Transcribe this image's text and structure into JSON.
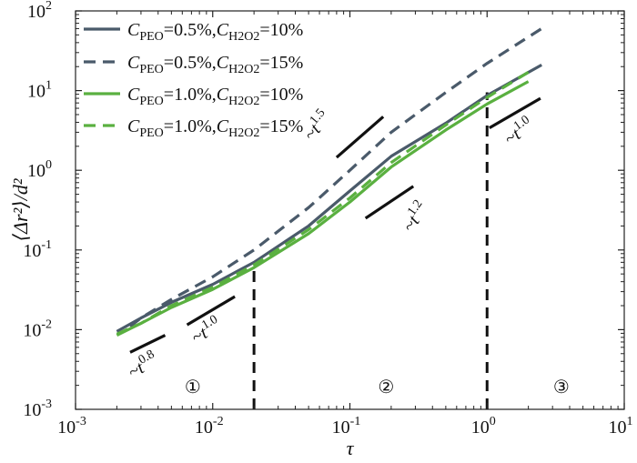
{
  "chart_data": {
    "type": "line",
    "xlabel": "τ",
    "ylabel": "⟨Δr²⟩/d²",
    "x_scale": "log",
    "y_scale": "log",
    "xlim": [
      0.001,
      10
    ],
    "ylim": [
      0.001,
      100
    ],
    "grid": false,
    "legend_position": "top-left",
    "x_ticks": [
      {
        "base": "10",
        "exp": "-3",
        "value": 0.001
      },
      {
        "base": "10",
        "exp": "-2",
        "value": 0.01
      },
      {
        "base": "10",
        "exp": "-1",
        "value": 0.1
      },
      {
        "base": "10",
        "exp": "0",
        "value": 1
      },
      {
        "base": "10",
        "exp": "1",
        "value": 10
      }
    ],
    "y_ticks": [
      {
        "base": "10",
        "exp": "-3",
        "value": 0.001
      },
      {
        "base": "10",
        "exp": "-2",
        "value": 0.01
      },
      {
        "base": "10",
        "exp": "-1",
        "value": 0.1
      },
      {
        "base": "10",
        "exp": "0",
        "value": 1
      },
      {
        "base": "10",
        "exp": "1",
        "value": 10
      },
      {
        "base": "10",
        "exp": "2",
        "value": 100
      }
    ],
    "series": [
      {
        "name": "CPEO=0.5%,CH2O2=10%",
        "label_parts": {
          "a": "C",
          "a_sub": "PEO",
          "b": "=0.5%,",
          "c": "C",
          "c_sub": "H2O2",
          "d": "=10%"
        },
        "color": "#4a5a6a",
        "dash": "solid",
        "x": [
          0.002,
          0.003,
          0.005,
          0.01,
          0.02,
          0.05,
          0.1,
          0.2,
          0.5,
          1.0,
          2.5
        ],
        "y": [
          0.0095,
          0.014,
          0.022,
          0.037,
          0.07,
          0.2,
          0.55,
          1.5,
          3.9,
          8.7,
          21
        ]
      },
      {
        "name": "CPEO=0.5%,CH2O2=15%",
        "label_parts": {
          "a": "C",
          "a_sub": "PEO",
          "b": "=0.5%,",
          "c": "C",
          "c_sub": "H2O2",
          "d": "=15%"
        },
        "color": "#4a5a6a",
        "dash": "dashed",
        "x": [
          0.0025,
          0.003,
          0.005,
          0.01,
          0.02,
          0.05,
          0.1,
          0.2,
          0.5,
          1.0,
          2.5
        ],
        "y": [
          0.011,
          0.014,
          0.024,
          0.046,
          0.1,
          0.34,
          1.0,
          3.0,
          9.5,
          22,
          60
        ]
      },
      {
        "name": "CPEO=1.0%,CH2O2=10%",
        "label_parts": {
          "a": "C",
          "a_sub": "PEO",
          "b": "=1.0%,",
          "c": "C",
          "c_sub": "H2O2",
          "d": "=10%"
        },
        "color": "#5ab040",
        "dash": "solid",
        "x": [
          0.002,
          0.003,
          0.005,
          0.01,
          0.02,
          0.05,
          0.1,
          0.2,
          0.5,
          1.0,
          2.0
        ],
        "y": [
          0.0085,
          0.012,
          0.019,
          0.032,
          0.06,
          0.16,
          0.4,
          1.1,
          3.2,
          6.8,
          13
        ]
      },
      {
        "name": "CPEO=1.0%,CH2O2=15%",
        "label_parts": {
          "a": "C",
          "a_sub": "PEO",
          "b": "=1.0%,",
          "c": "C",
          "c_sub": "H2O2",
          "d": "=15%"
        },
        "color": "#5ab040",
        "dash": "dashed",
        "x": [
          0.002,
          0.003,
          0.005,
          0.01,
          0.02,
          0.05,
          0.1,
          0.2,
          0.5,
          1.0,
          2.0
        ],
        "y": [
          0.0088,
          0.012,
          0.02,
          0.034,
          0.065,
          0.18,
          0.45,
          1.25,
          3.7,
          8.2,
          17
        ]
      }
    ],
    "vertical_lines": [
      0.02,
      1.0
    ],
    "slope_annotations": [
      {
        "base": "~t",
        "exp": "0.8",
        "x1": 0.0025,
        "x2": 0.0045,
        "y1": 0.0052,
        "y2": 0.0085
      },
      {
        "base": "~t",
        "exp": "1.0",
        "x1": 0.0065,
        "x2": 0.0145,
        "y1": 0.0115,
        "y2": 0.026
      },
      {
        "base": "~t",
        "exp": "1.5",
        "x1": 0.08,
        "x2": 0.175,
        "y1": 1.45,
        "y2": 4.7
      },
      {
        "base": "~t",
        "exp": "1.2",
        "x1": 0.13,
        "x2": 0.29,
        "y1": 0.25,
        "y2": 0.63
      },
      {
        "base": "~t",
        "exp": "1.0",
        "x1": 1.04,
        "x2": 2.45,
        "y1": 3.4,
        "y2": 8.0
      }
    ],
    "regions": [
      "①",
      "②",
      "③"
    ]
  }
}
